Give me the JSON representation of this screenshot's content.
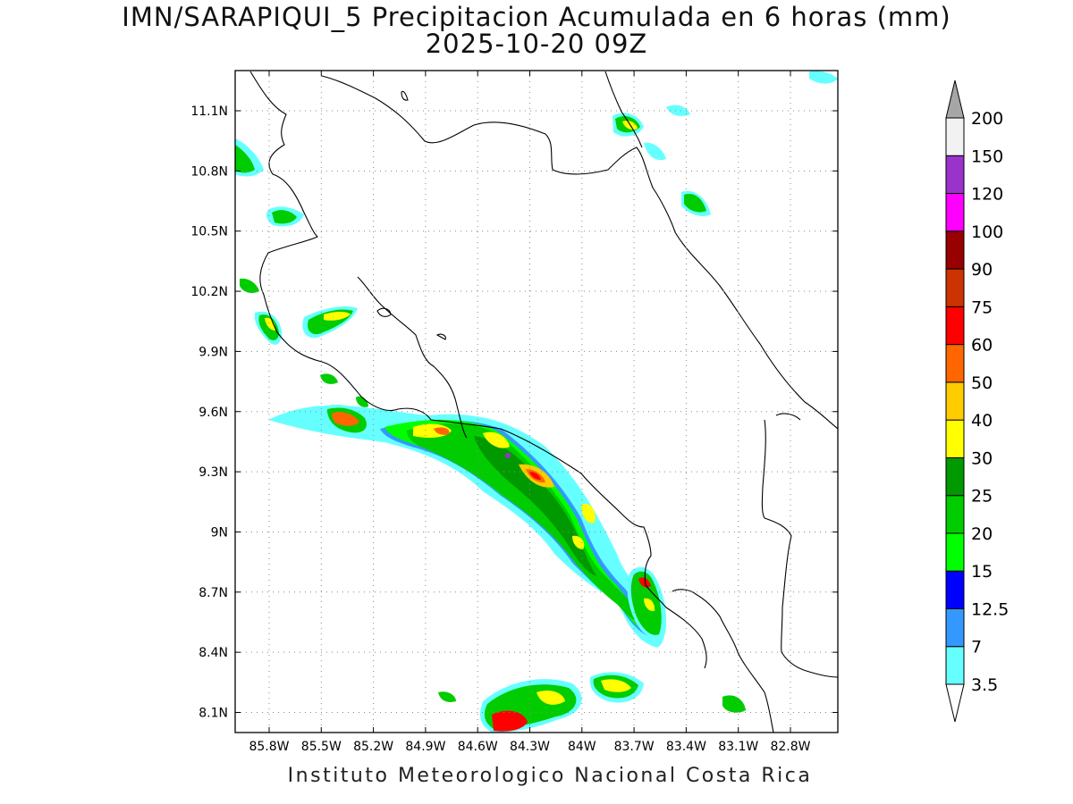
{
  "title": {
    "line1": "IMN/SARAPIQUI_5 Precipitacion Acumulada en 6 horas (mm)",
    "line2": "2025-10-20 09Z"
  },
  "footer": "Instituto Meteorologico Nacional Costa Rica",
  "map": {
    "lat_labels": [
      "11.1N",
      "10.8N",
      "10.5N",
      "10.2N",
      "9.9N",
      "9.6N",
      "9.3N",
      "9N",
      "8.7N",
      "8.4N",
      "8.1N"
    ],
    "lon_labels": [
      "85.8W",
      "85.5W",
      "85.2W",
      "84.9W",
      "84.6W",
      "84.3W",
      "84W",
      "83.7W",
      "83.4W",
      "83.1W",
      "82.8W"
    ],
    "grid": "dotted"
  },
  "colorbar": {
    "labels": [
      "3.5",
      "7",
      "12.5",
      "15",
      "20",
      "25",
      "30",
      "40",
      "50",
      "60",
      "75",
      "90",
      "100",
      "120",
      "150",
      "200"
    ],
    "colors": [
      "#66ffff",
      "#3399ff",
      "#0000ff",
      "#00ff00",
      "#00cc00",
      "#009900",
      "#ffff00",
      "#ffcc00",
      "#ff6600",
      "#ff0000",
      "#cc3300",
      "#990000",
      "#ff00ff",
      "#9933cc",
      "#f2f2f2",
      "#a6a6a6"
    ]
  }
}
